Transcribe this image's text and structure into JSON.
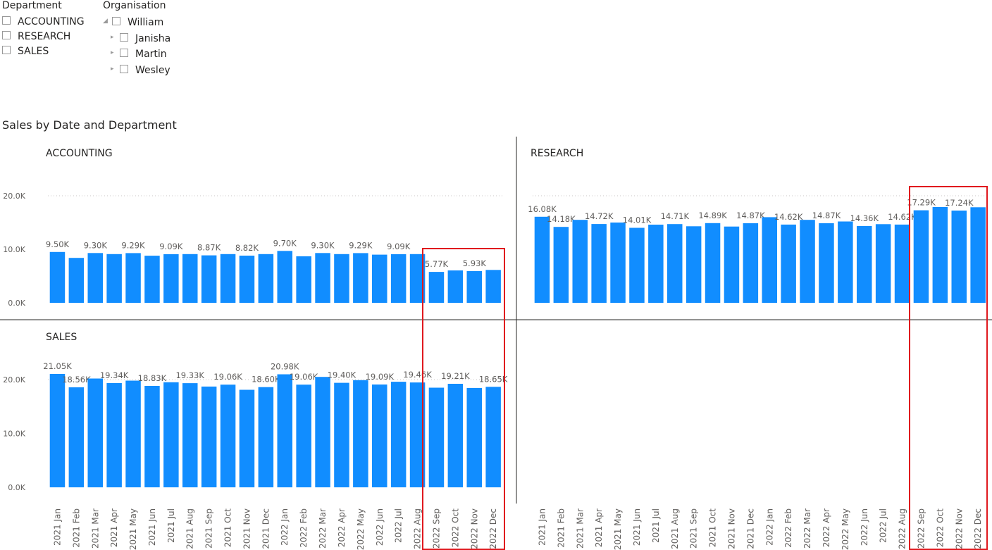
{
  "department_slicer": {
    "title": "Department",
    "items": [
      {
        "label": "ACCOUNTING"
      },
      {
        "label": "RESEARCH"
      },
      {
        "label": "SALES"
      }
    ]
  },
  "organisation_slicer": {
    "title": "Organisation",
    "items": [
      {
        "label": "William",
        "expanded": true
      },
      {
        "label": "Janisha",
        "expanded": false
      },
      {
        "label": "Martin",
        "expanded": false
      },
      {
        "label": "Wesley",
        "expanded": false
      }
    ]
  },
  "chart_title": "Sales by Date and Department",
  "colors": {
    "bar": "#118DFF",
    "highlight_box": "#E0191E",
    "axis_text": "#605E5C",
    "divider": "#252423",
    "gridline": "#C8C6C4"
  },
  "chart_data": {
    "type": "bar",
    "title": "Sales by Date and Department",
    "categories": [
      "2021 Jan",
      "2021 Feb",
      "2021 Mar",
      "2021 Apr",
      "2021 May",
      "2021 Jun",
      "2021 Jul",
      "2021 Aug",
      "2021 Sep",
      "2021 Oct",
      "2021 Nov",
      "2021 Dec",
      "2022 Jan",
      "2022 Feb",
      "2022 Mar",
      "2022 Apr",
      "2022 May",
      "2022 Jun",
      "2022 Jul",
      "2022 Aug",
      "2022 Sep",
      "2022 Oct",
      "2022 Nov",
      "2022 Dec"
    ],
    "ylim": [
      0,
      20000
    ],
    "y_ticks": [
      "0.0K",
      "10.0K",
      "20.0K"
    ],
    "grid": true,
    "highlighted_categories": [
      "2022 Sep",
      "2022 Oct",
      "2022 Nov",
      "2022 Dec"
    ],
    "panels": [
      {
        "name": "ACCOUNTING",
        "values": [
          9500,
          8400,
          9300,
          9100,
          9290,
          8800,
          9090,
          9100,
          8870,
          9100,
          8820,
          9100,
          9700,
          8700,
          9300,
          9100,
          9290,
          9000,
          9090,
          9100,
          5770,
          6050,
          5930,
          6150
        ],
        "labels": [
          "9.50K",
          "",
          "9.30K",
          "",
          "9.29K",
          "",
          "9.09K",
          "",
          "8.87K",
          "",
          "8.82K",
          "",
          "9.70K",
          "",
          "9.30K",
          "",
          "9.29K",
          "",
          "9.09K",
          "",
          "5.77K",
          "",
          "5.93K",
          ""
        ]
      },
      {
        "name": "RESEARCH",
        "values": [
          16080,
          14180,
          15500,
          14720,
          15000,
          14010,
          14600,
          14710,
          14300,
          14890,
          14250,
          14870,
          16000,
          14620,
          15500,
          14870,
          15200,
          14360,
          14700,
          14620,
          17290,
          17900,
          17240,
          17850
        ],
        "labels": [
          "16.08K",
          "14.18K",
          "",
          "14.72K",
          "",
          "14.01K",
          "",
          "14.71K",
          "",
          "14.89K",
          "",
          "14.87K",
          "",
          "14.62K",
          "",
          "14.87K",
          "",
          "14.36K",
          "",
          "14.62K",
          "17.29K",
          "",
          "17.24K",
          ""
        ]
      },
      {
        "name": "SALES",
        "values": [
          21050,
          18560,
          20200,
          19340,
          19800,
          18830,
          19500,
          19330,
          18700,
          19060,
          18100,
          18600,
          20980,
          19060,
          20500,
          19400,
          19900,
          19090,
          19600,
          19460,
          18500,
          19210,
          18450,
          18650
        ],
        "labels": [
          "21.05K",
          "18.56K",
          "",
          "19.34K",
          "",
          "18.83K",
          "",
          "19.33K",
          "",
          "19.06K",
          "",
          "18.60K",
          "20.98K",
          "19.06K",
          "",
          "19.40K",
          "",
          "19.09K",
          "",
          "19.46K",
          "",
          "19.21K",
          "",
          "18.65K"
        ]
      }
    ]
  }
}
